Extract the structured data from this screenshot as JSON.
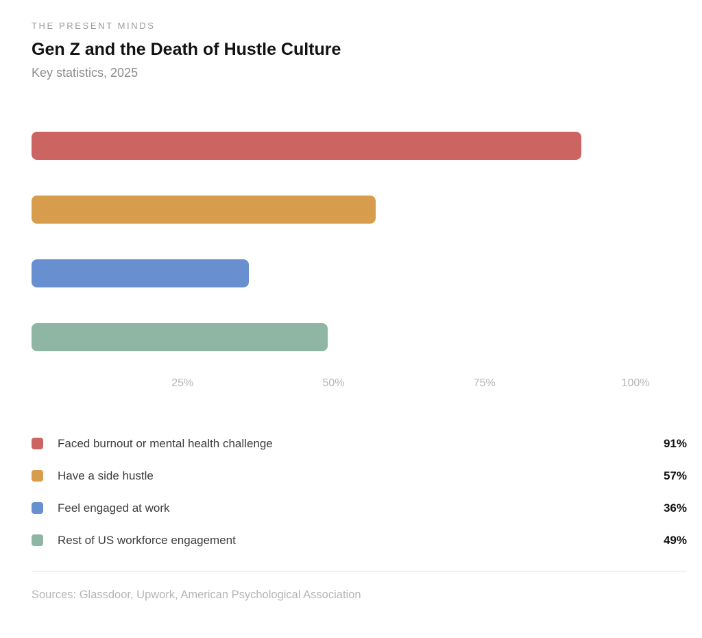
{
  "header": {
    "eyebrow": "THE PRESENT MINDS",
    "title": "Gen Z and the Death of Hustle Culture",
    "subtitle": "Key statistics, 2025"
  },
  "chart_data": {
    "type": "bar",
    "orientation": "horizontal",
    "title": "Gen Z and the Death of Hustle Culture",
    "subtitle": "Key statistics, 2025",
    "categories": [
      "Faced burnout or mental health challenge",
      "Have a side hustle",
      "Feel engaged at work",
      "Rest of US workforce engagement"
    ],
    "values": [
      91,
      57,
      36,
      49
    ],
    "value_labels": [
      "91%",
      "57%",
      "36%",
      "49%"
    ],
    "unit": "%",
    "colors": [
      "#cc6561",
      "#d89c4d",
      "#6890d0",
      "#8fb5a5"
    ],
    "xlim": [
      0,
      100
    ],
    "x_ticks": [
      25,
      50,
      75,
      100
    ],
    "x_tick_labels": [
      "25%",
      "50%",
      "75%",
      "100%"
    ],
    "xlabel": "",
    "ylabel": "",
    "grid": false,
    "legend_position": "below"
  },
  "footer": {
    "sources": "Sources: Glassdoor, Upwork, American Psychological Association"
  }
}
